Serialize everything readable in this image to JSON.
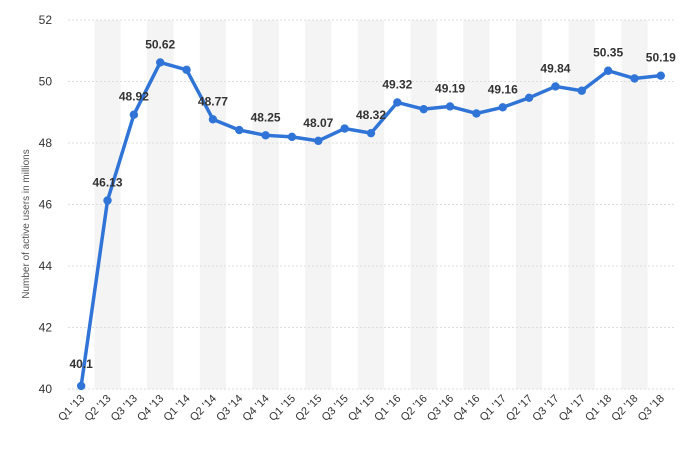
{
  "chart_data": {
    "type": "line",
    "ylabel": "Number of active users in millions",
    "xlabel": "",
    "ylim": [
      40,
      52
    ],
    "yticks": [
      40,
      42,
      44,
      46,
      48,
      50,
      52
    ],
    "grid": true,
    "categories": [
      "Q1 '13",
      "Q2 '13",
      "Q3 '13",
      "Q4 '13",
      "Q1 '14",
      "Q2 '14",
      "Q3 '14",
      "Q4 '14",
      "Q1 '15",
      "Q2 '15",
      "Q3 '15",
      "Q4 '15",
      "Q1 '16",
      "Q2 '16",
      "Q3 '16",
      "Q4 '16",
      "Q1 '17",
      "Q2 '17",
      "Q3 '17",
      "Q4 '17",
      "Q1 '18",
      "Q2 '18",
      "Q3 '18"
    ],
    "values": [
      40.1,
      46.13,
      48.92,
      50.62,
      50.38,
      48.77,
      48.42,
      48.25,
      48.2,
      48.07,
      48.47,
      48.32,
      49.32,
      49.1,
      49.19,
      48.96,
      49.16,
      49.47,
      49.84,
      49.7,
      50.35,
      50.1,
      50.19
    ],
    "data_labels": [
      "40.1",
      "46.13",
      "48.92",
      "50.62",
      "",
      "48.77",
      "",
      "48.25",
      "",
      "48.07",
      "",
      "48.32",
      "49.32",
      "",
      "49.19",
      "",
      "49.16",
      "",
      "49.84",
      "",
      "50.35",
      "",
      "50.19"
    ],
    "colors": {
      "line": "#2f74d6",
      "band": "#f4f4f4",
      "grid": "#dddddd"
    }
  }
}
